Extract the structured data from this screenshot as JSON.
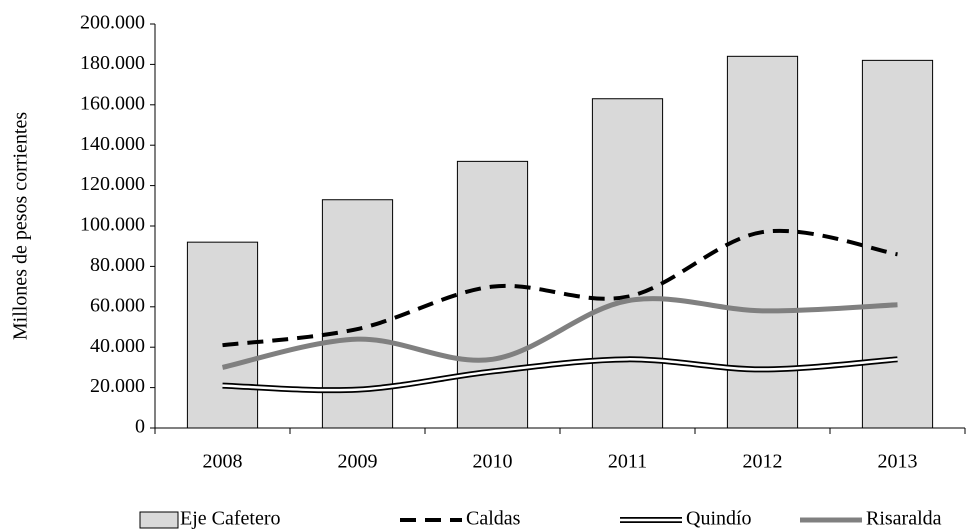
{
  "chart_data": {
    "type": "bar-line",
    "y_label": "Millones de pesos corrientes",
    "categories": [
      "2008",
      "2009",
      "2010",
      "2011",
      "2012",
      "2013"
    ],
    "series": [
      {
        "name": "Eje Cafetero",
        "type": "bar",
        "color": "#d9d9d9",
        "values": [
          92000,
          113000,
          132000,
          163000,
          184000,
          182000
        ]
      },
      {
        "name": "Caldas",
        "type": "line",
        "style": "dashed",
        "color": "#000000",
        "values": [
          41000,
          49000,
          70000,
          65000,
          97000,
          86000
        ]
      },
      {
        "name": "Quindío",
        "type": "line",
        "style": "double",
        "color": "#000000",
        "values": [
          21000,
          19000,
          28000,
          34000,
          29000,
          34000
        ]
      },
      {
        "name": "Risaralda",
        "type": "line",
        "style": "solid",
        "color": "#808080",
        "values": [
          30000,
          44000,
          34000,
          63000,
          58000,
          61000
        ]
      }
    ],
    "ylim": [
      0,
      200000
    ],
    "yticks": [
      0,
      {
        "value": 20000,
        "label": "20.000"
      },
      {
        "value": 40000,
        "label": "40.000"
      },
      {
        "value": 60000,
        "label": "60.000"
      },
      {
        "value": 80000,
        "label": "80.000"
      },
      {
        "value": 100000,
        "label": "100.000"
      },
      {
        "value": 120000,
        "label": "120.000"
      },
      {
        "value": 140000,
        "label": "140.000"
      },
      {
        "value": 160000,
        "label": "160.000"
      },
      {
        "value": 180000,
        "label": "180.000"
      },
      {
        "value": 200000,
        "label": "200.000"
      }
    ],
    "legend": "bottom"
  }
}
